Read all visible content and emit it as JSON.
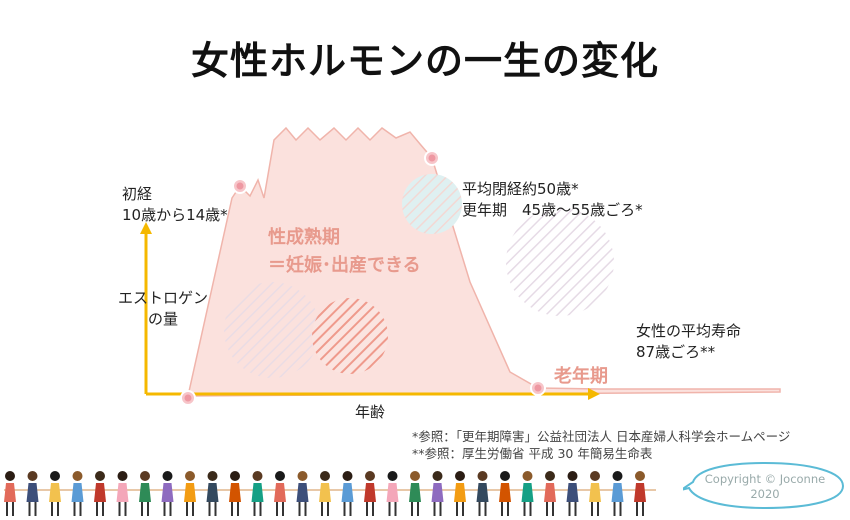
{
  "title": "女性ホルモンの一生の変化",
  "y_axis_label": "エストロゲン\nの量",
  "x_axis_label": "年齢",
  "annotations": {
    "menarche": "初経\n10歳から14歳*",
    "menopause": "平均閉経約50歳*\n更年期　45歳～55歳ごろ*",
    "reproductive": "性成熟期\n＝妊娠･出産できる",
    "old_age": "老年期",
    "life_expectancy": "女性の平均寿命\n87歳ごろ**"
  },
  "notes": [
    "*参照：「更年期障害」公益社団法人 日本産婦人科学会ホームページ",
    "**参照：厚生労働省 平成 30 年簡易生命表"
  ],
  "copyright": "Copyright © Joconne\n2020",
  "colors": {
    "axis": "#f5b800",
    "curve_fill": "#fbe0dc",
    "curve_stroke": "#f0b4ab",
    "marker": "#f2a4ac",
    "accent_text": "#e89a8d",
    "bubble": "#7fb8c4"
  }
}
